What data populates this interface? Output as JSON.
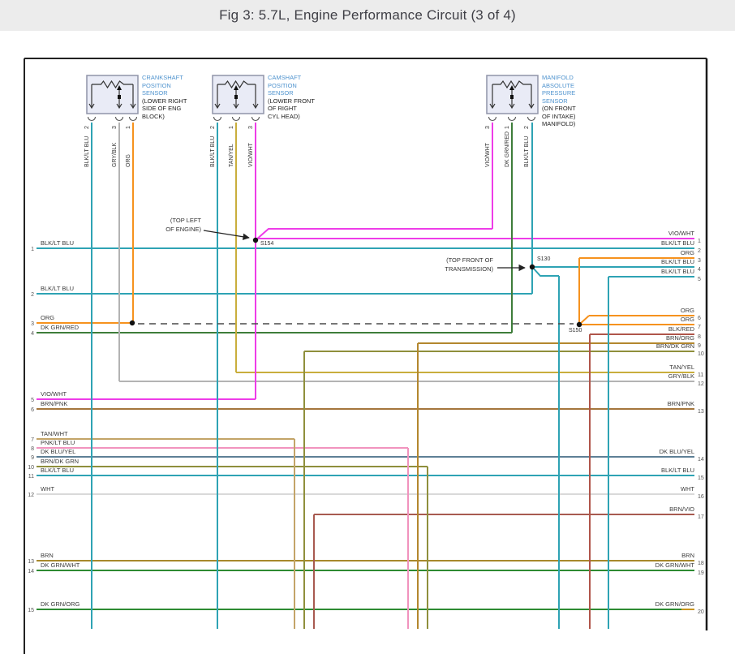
{
  "title": "Fig 3: 5.7L, Engine Performance Circuit (3 of 4)",
  "palette": {
    "BLK/LT BLU": "#2ea3b4",
    "GRY/BLK": "#b3b3b3",
    "ORG": "#f6921e",
    "TAN/YEL": "#c9ae3d",
    "VIO/WHT": "#ee3ce8",
    "DK GRN/RED": "#3e7d3a",
    "BRN/PNK": "#a5763c",
    "TAN/WHT": "#c3a468",
    "PNK/LT BLU": "#f193be",
    "DK BLU/YEL": "#5e8096",
    "BRN/DK GRN": "#8f8f3c",
    "WHT": "#d9d9d9",
    "BRN": "#a8892c",
    "DK GRN/WHT": "#2e8b33",
    "DK GRN/ORG": "#2e8b33",
    "BLK/RED": "#b0554a",
    "BRN/ORG": "#b3872e",
    "BRN/VIO": "#a85a50",
    "dash": "#4a4a4a",
    "sensor_name": "#4f93ce",
    "orange_tip": "#c9941e",
    "sensor_fill": "#e9ebf6",
    "sensor_stroke": "#8f94a8"
  },
  "sensors": [
    {
      "name_lines": [
        "CRANKSHAFT",
        "POSITION",
        "SENSOR"
      ],
      "location_lines": [
        "(LOWER RIGHT",
        "SIDE OF ENG",
        "BLOCK)"
      ],
      "pins": [
        {
          "num": "2",
          "color": "BLK/LT BLU"
        },
        {
          "num": "3",
          "color": "GRY/BLK"
        },
        {
          "num": "1",
          "color": "ORG"
        }
      ]
    },
    {
      "name_lines": [
        "CAMSHAFT",
        "POSITION",
        "SENSOR"
      ],
      "location_lines": [
        "(LOWER FRONT",
        "OF RIGHT",
        "CYL HEAD)"
      ],
      "pins": [
        {
          "num": "2",
          "color": "BLK/LT BLU"
        },
        {
          "num": "1",
          "color": "TAN/YEL"
        },
        {
          "num": "3",
          "color": "VIO/WHT"
        }
      ]
    },
    {
      "name_lines": [
        "MANIFOLD",
        "ABSOLUTE",
        "PRESSURE",
        "SENSOR"
      ],
      "location_lines": [
        "(ON FRONT",
        "OF INTAKE)",
        "MANIFOLD)"
      ],
      "pins": [
        {
          "num": "3",
          "color": "VIO/WHT"
        },
        {
          "num": "1",
          "color": "DK GRN/RED"
        },
        {
          "num": "2",
          "color": "BLK/LT BLU"
        }
      ]
    }
  ],
  "splices": [
    {
      "id": "S154",
      "note_lines": [
        "(TOP LEFT",
        "OF ENGINE)"
      ]
    },
    {
      "id": "S130",
      "note_lines": [
        "(TOP FRONT OF",
        "TRANSMISSION)"
      ]
    },
    {
      "id": "S150",
      "note_lines": []
    }
  ],
  "left_rows": [
    {
      "n": "1",
      "label": "BLK/LT BLU"
    },
    {
      "n": "2",
      "label": "BLK/LT BLU"
    },
    {
      "n": "3",
      "label": "ORG"
    },
    {
      "n": "4",
      "label": "DK GRN/RED"
    },
    {
      "n": "5",
      "label": "VIO/WHT"
    },
    {
      "n": "6",
      "label": "BRN/PNK"
    },
    {
      "n": "7",
      "label": "TAN/WHT"
    },
    {
      "n": "8",
      "label": "PNK/LT BLU"
    },
    {
      "n": "9",
      "label": "DK BLU/YEL"
    },
    {
      "n": "10",
      "label": "BRN/DK GRN"
    },
    {
      "n": "11",
      "label": "BLK/LT BLU"
    },
    {
      "n": "12",
      "label": "WHT"
    },
    {
      "n": "13",
      "label": "BRN"
    },
    {
      "n": "14",
      "label": "DK GRN/WHT"
    },
    {
      "n": "15",
      "label": "DK GRN/ORG"
    }
  ],
  "right_rows": [
    {
      "n": "1",
      "label": "VIO/WHT"
    },
    {
      "n": "2",
      "label": "BLK/LT BLU"
    },
    {
      "n": "3",
      "label": "ORG"
    },
    {
      "n": "4",
      "label": "BLK/LT BLU"
    },
    {
      "n": "5",
      "label": "BLK/LT BLU"
    },
    {
      "n": "6",
      "label": "ORG"
    },
    {
      "n": "7",
      "label": "ORG"
    },
    {
      "n": "8",
      "label": "BLK/RED"
    },
    {
      "n": "9",
      "label": "BRN/ORG"
    },
    {
      "n": "10",
      "label": "BRN/DK GRN"
    },
    {
      "n": "11",
      "label": "TAN/YEL"
    },
    {
      "n": "12",
      "label": "GRY/BLK"
    },
    {
      "n": "13",
      "label": "BRN/PNK"
    },
    {
      "n": "14",
      "label": "DK BLU/YEL"
    },
    {
      "n": "15",
      "label": "BLK/LT BLU"
    },
    {
      "n": "16",
      "label": "WHT"
    },
    {
      "n": "17",
      "label": "BRN/VIO"
    },
    {
      "n": "18",
      "label": "BRN"
    },
    {
      "n": "19",
      "label": "DK GRN/WHT"
    },
    {
      "n": "20",
      "label": "DK GRN/ORG"
    }
  ]
}
